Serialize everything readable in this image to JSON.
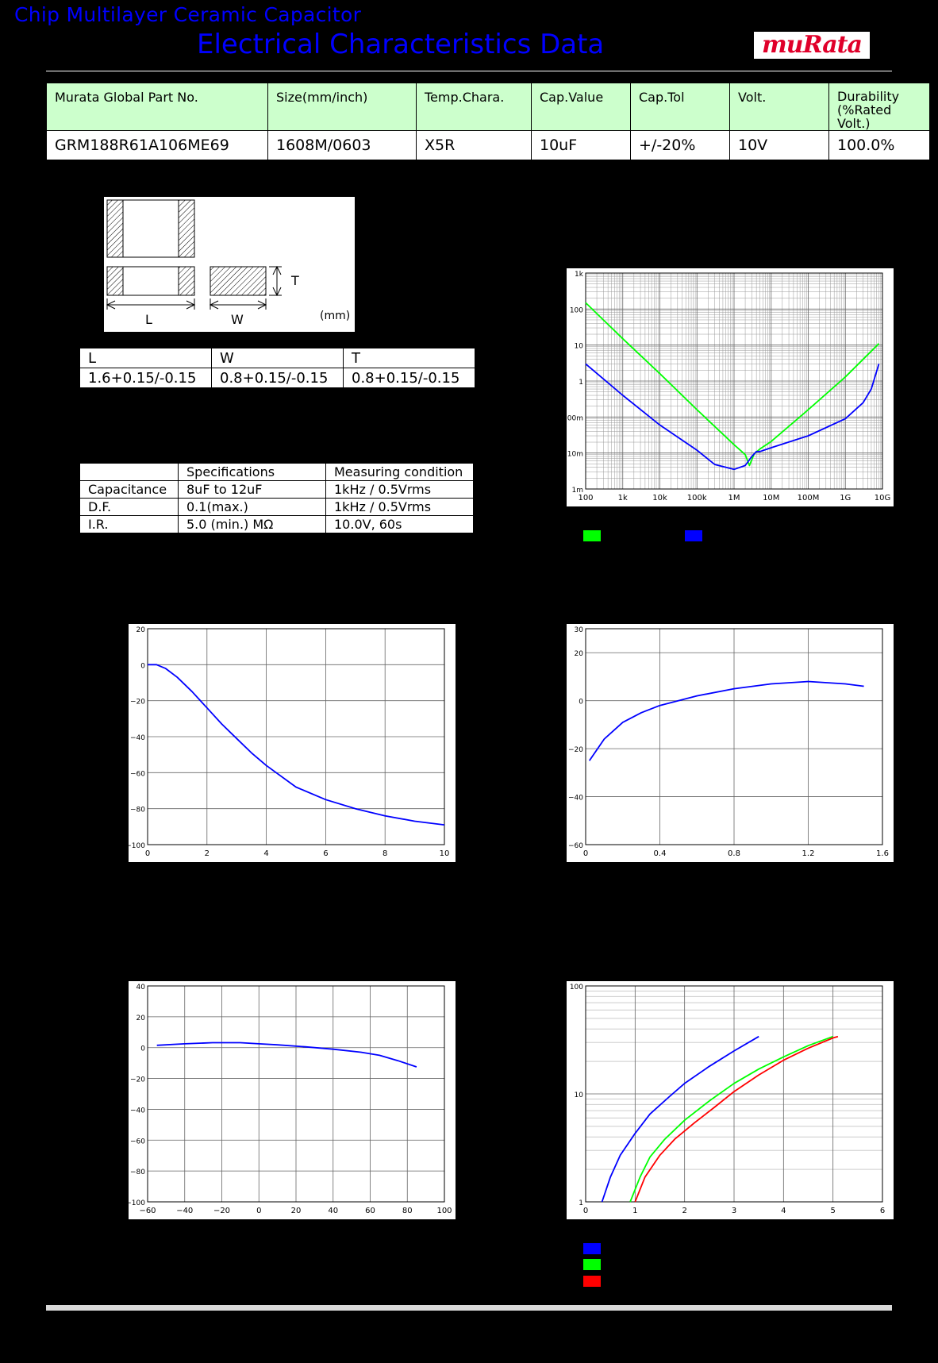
{
  "header": {
    "title1": "Chip Multilayer Ceramic Capacitor",
    "title2": "Electrical Characteristics Data",
    "logo_text": "muRata"
  },
  "part_table": {
    "headers": [
      "Murata Global Part No.",
      "Size(mm/inch)",
      "Temp.Chara.",
      "Cap.Value",
      "Cap.Tol",
      "Volt.",
      "Durability",
      "(%Rated Volt.)"
    ],
    "values": [
      "GRM188R61A106ME69",
      "1608M/0603",
      "X5R",
      "10uF",
      "+/-20%",
      "10V",
      "100.0%"
    ]
  },
  "dimension_figure": {
    "labels": [
      "L",
      "W",
      "T",
      "(mm)"
    ]
  },
  "dimension_table": {
    "headers": [
      "L",
      "W",
      "T"
    ],
    "values": [
      "1.6+0.15/-0.15",
      "0.8+0.15/-0.15",
      "0.8+0.15/-0.15"
    ]
  },
  "measure_table": {
    "headers": [
      "",
      "Specifications",
      "Measuring condition"
    ],
    "rows": [
      [
        "Capacitance",
        "8uF to 12uF",
        "1kHz / 0.5Vrms"
      ],
      [
        "D.F.",
        "0.1(max.)",
        "1kHz / 0.5Vrms"
      ],
      [
        "I.R.",
        "5.0 (min.) MΩ",
        "10.0V, 60s"
      ]
    ]
  },
  "colors": {
    "green": "#00ff00",
    "blue": "#0000ff",
    "red": "#ff0000"
  },
  "chart_data": [
    {
      "id": "impedance",
      "type": "line",
      "xscale": "log",
      "yscale": "log",
      "x_ticks": [
        "100",
        "1k",
        "10k",
        "100k",
        "1M",
        "10M",
        "100M",
        "1G",
        "10G"
      ],
      "y_ticks": [
        "1m",
        "10m",
        "100m",
        "1",
        "10",
        "100",
        "1k"
      ],
      "xlim": [
        100,
        10000000000
      ],
      "ylim": [
        0.001,
        1000
      ],
      "series": [
        {
          "color": "#00ff00",
          "x": [
            100,
            1000,
            10000,
            100000,
            1000000,
            2000000,
            2600000,
            3500000,
            5000000,
            10000000,
            100000000,
            1000000000,
            8000000000
          ],
          "y": [
            150,
            15,
            1.6,
            0.16,
            0.017,
            0.009,
            0.0045,
            0.0095,
            0.013,
            0.021,
            0.16,
            1.3,
            11
          ]
        },
        {
          "color": "#0000ff",
          "x": [
            100,
            1000,
            10000,
            100000,
            300000,
            1000000,
            2000000,
            3000000,
            4000000,
            5000000,
            10000000,
            100000000,
            1000000000,
            3000000000,
            5000000000,
            8000000000
          ],
          "y": [
            3,
            0.4,
            0.06,
            0.012,
            0.0048,
            0.0035,
            0.0045,
            0.008,
            0.011,
            0.011,
            0.014,
            0.03,
            0.09,
            0.25,
            0.6,
            3
          ]
        }
      ]
    },
    {
      "id": "dc-bias",
      "type": "line",
      "x_ticks": [
        "0",
        "2",
        "4",
        "6",
        "8",
        "10"
      ],
      "y_ticks": [
        "20",
        "0",
        "−20",
        "−40",
        "−60",
        "−80",
        "−100"
      ],
      "xlim": [
        0,
        10
      ],
      "ylim": [
        -100,
        20
      ],
      "series": [
        {
          "color": "#0000ff",
          "x": [
            0,
            0.3,
            0.6,
            1,
            1.5,
            2,
            2.5,
            3,
            3.5,
            4,
            5,
            6,
            7,
            8,
            9,
            10
          ],
          "y": [
            0,
            0,
            -2,
            -7,
            -15,
            -24,
            -33,
            -41,
            -49,
            -56,
            -68,
            -75,
            -80,
            -84,
            -87,
            -89
          ]
        }
      ]
    },
    {
      "id": "ac-voltage",
      "type": "line",
      "x_ticks": [
        "0",
        "0.4",
        "0.8",
        "1.2",
        "1.6"
      ],
      "y_ticks": [
        "30",
        "20",
        "0",
        "−20",
        "−40",
        "−60"
      ],
      "xlim": [
        0,
        1.6
      ],
      "ylim": [
        -60,
        30
      ],
      "series": [
        {
          "color": "#0000ff",
          "x": [
            0.02,
            0.1,
            0.2,
            0.3,
            0.4,
            0.6,
            0.8,
            1.0,
            1.2,
            1.4,
            1.5
          ],
          "y": [
            -25,
            -16,
            -9,
            -5,
            -2,
            2,
            5,
            7,
            8,
            7,
            6
          ]
        }
      ]
    },
    {
      "id": "temperature",
      "type": "line",
      "x_ticks": [
        "−60",
        "−40",
        "−20",
        "0",
        "20",
        "40",
        "60",
        "80",
        "100"
      ],
      "y_ticks": [
        "40",
        "20",
        "0",
        "−20",
        "−40",
        "−60",
        "−80",
        "−100"
      ],
      "xlim": [
        -60,
        100
      ],
      "ylim": [
        -100,
        40
      ],
      "series": [
        {
          "color": "#0000ff",
          "x": [
            -55,
            -40,
            -25,
            -10,
            0,
            10,
            25,
            40,
            55,
            65,
            75,
            85
          ],
          "y": [
            1.5,
            2.5,
            3.2,
            3.2,
            2.5,
            1.8,
            0.5,
            -1,
            -3,
            -5,
            -8.5,
            -12.5
          ]
        }
      ]
    },
    {
      "id": "ripple",
      "type": "line",
      "yscale": "log",
      "x_ticks": [
        "0",
        "1",
        "2",
        "3",
        "4",
        "5",
        "6"
      ],
      "y_ticks": [
        "100",
        "10",
        "1"
      ],
      "xlim": [
        0,
        6
      ],
      "ylim": [
        1,
        100
      ],
      "series": [
        {
          "color": "#0000ff",
          "x": [
            0.33,
            0.5,
            0.7,
            1.0,
            1.3,
            1.7,
            2.0,
            2.5,
            3.0,
            3.5
          ],
          "y": [
            1,
            1.7,
            2.7,
            4.3,
            6.5,
            9.5,
            12.5,
            18,
            25,
            34
          ]
        },
        {
          "color": "#00ff00",
          "x": [
            0.9,
            1.1,
            1.3,
            1.6,
            2.0,
            2.5,
            3.0,
            3.5,
            4.0,
            4.5,
            5.0
          ],
          "y": [
            1,
            1.7,
            2.6,
            3.8,
            5.7,
            8.6,
            12.5,
            17,
            22,
            28,
            34
          ]
        },
        {
          "color": "#ff0000",
          "x": [
            1.0,
            1.2,
            1.5,
            1.8,
            2.2,
            2.6,
            3.0,
            3.5,
            4.0,
            4.5,
            5.0,
            5.1
          ],
          "y": [
            1,
            1.7,
            2.7,
            3.8,
            5.4,
            7.5,
            10.5,
            15,
            20.5,
            26.5,
            33,
            34
          ]
        }
      ]
    }
  ]
}
